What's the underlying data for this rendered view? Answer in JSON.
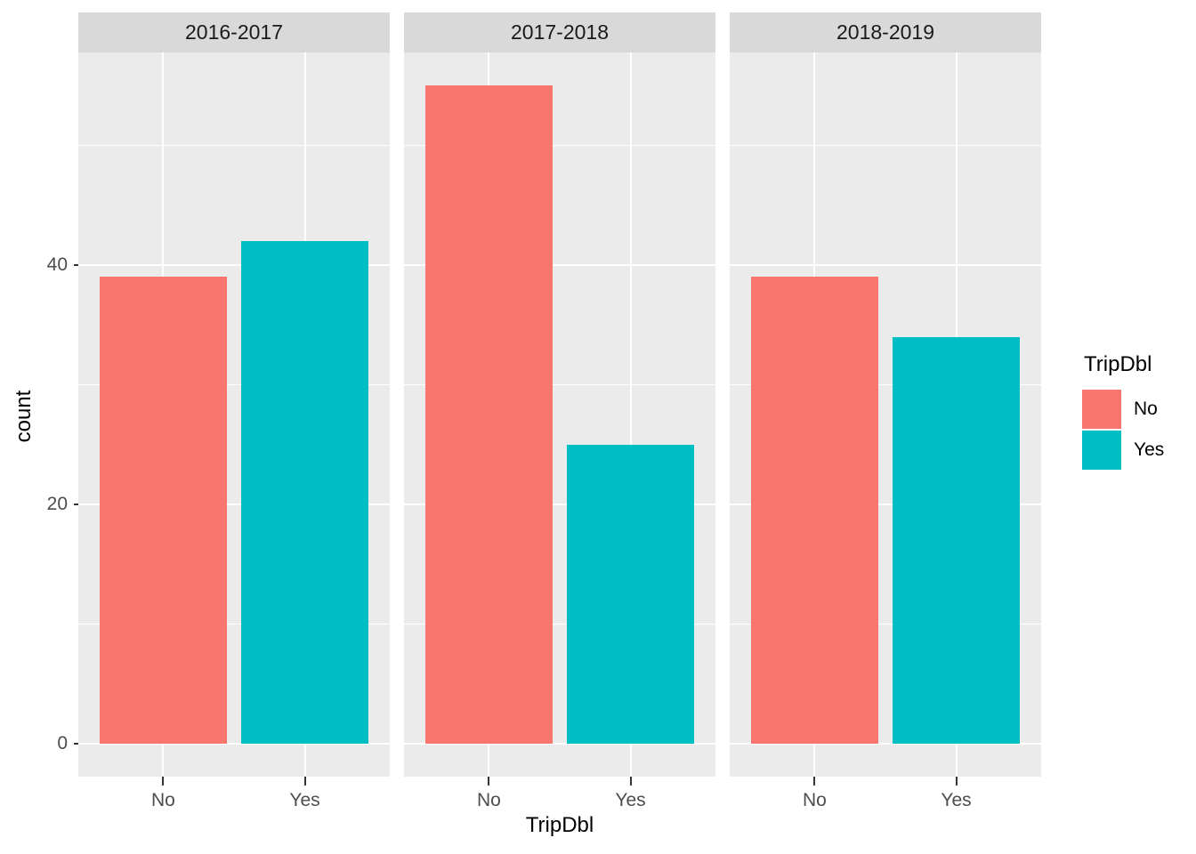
{
  "chart_data": {
    "type": "bar",
    "facet_variable_values": [
      "2016-2017",
      "2017-2018",
      "2018-2019"
    ],
    "categories": [
      "No",
      "Yes"
    ],
    "facets": [
      {
        "title": "2016-2017",
        "bars": [
          {
            "category": "No",
            "value": 39
          },
          {
            "category": "Yes",
            "value": 42
          }
        ]
      },
      {
        "title": "2017-2018",
        "bars": [
          {
            "category": "No",
            "value": 55
          },
          {
            "category": "Yes",
            "value": 25
          }
        ]
      },
      {
        "title": "2018-2019",
        "bars": [
          {
            "category": "No",
            "value": 39
          },
          {
            "category": "Yes",
            "value": 34
          }
        ]
      }
    ],
    "series": [
      {
        "name": "No",
        "color": "#F8766D",
        "values": [
          39,
          55,
          39
        ]
      },
      {
        "name": "Yes",
        "color": "#00BFC4",
        "values": [
          42,
          25,
          34
        ]
      }
    ],
    "xlabel": "TripDbl",
    "ylabel": "count",
    "y_ticks": [
      0,
      20,
      40
    ],
    "y_minor_ticks": [
      10,
      30,
      50
    ],
    "ylim": [
      -2.75,
      57.75
    ],
    "grid": "on",
    "legend": {
      "title": "TripDbl",
      "position": "right",
      "items": [
        {
          "label": "No",
          "color": "#F8766D"
        },
        {
          "label": "Yes",
          "color": "#00BFC4"
        }
      ]
    },
    "colors": {
      "bar_no": "#F8766D",
      "bar_yes": "#00BFC4",
      "panel_background": "#EBEBEB",
      "strip_background": "#D9D9D9",
      "gridline": "#FFFFFF",
      "axis_text": "#4D4D4D",
      "tick_mark": "#333333",
      "title_text": "#000000"
    }
  }
}
